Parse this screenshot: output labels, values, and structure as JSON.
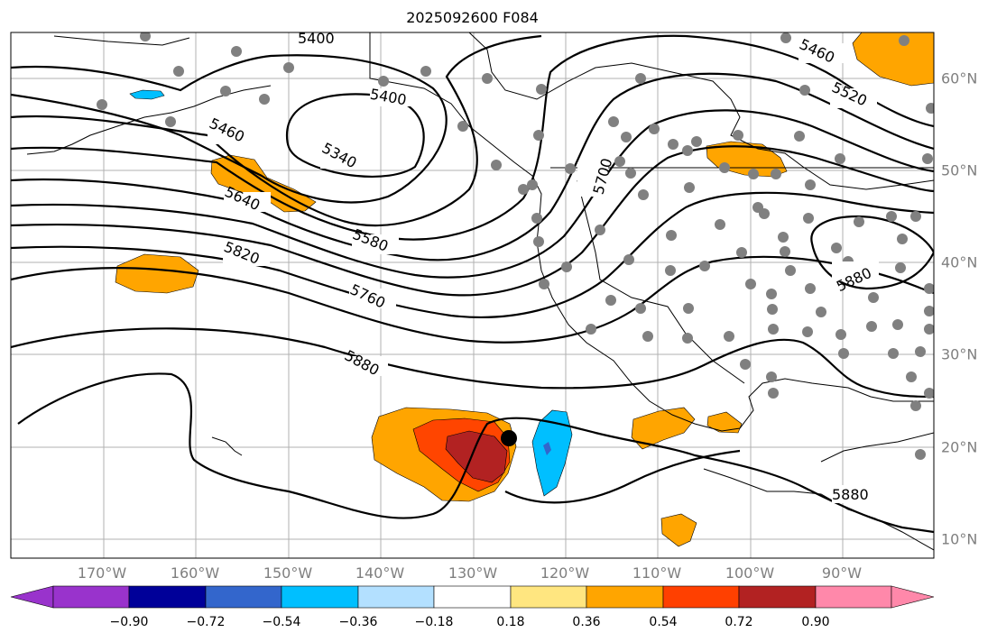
{
  "title": "2025092600 F084",
  "lon_labels": [
    "170°W",
    "160°W",
    "150°W",
    "140°W",
    "130°W",
    "120°W",
    "110°W",
    "100°W",
    "90°W"
  ],
  "lat_labels": [
    "60°N",
    "50°N",
    "40°N",
    "30°N",
    "20°N",
    "10°N"
  ],
  "contour_labels": [
    "5400",
    "5400",
    "5460",
    "5520",
    "5460",
    "5340",
    "5640",
    "5580",
    "5700",
    "5820",
    "5760",
    "5880",
    "5880",
    "5880"
  ],
  "colorbar": {
    "ticks": [
      "−0.90",
      "−0.72",
      "−0.54",
      "−0.36",
      "−0.18",
      "0.18",
      "0.36",
      "0.54",
      "0.72",
      "0.90"
    ],
    "colors": [
      "#9933cc",
      "#000099",
      "#3366cc",
      "#00bfff",
      "#b3e0ff",
      "#ffffff",
      "#ffe680",
      "#ffa500",
      "#ff4000",
      "#b22222",
      "#ff88aa"
    ]
  },
  "colors": {
    "light_orange": "#ffa500",
    "orange_red": "#ff4500",
    "dark_red": "#b22222",
    "cyan": "#00bfff",
    "station_dot": "#808080",
    "marker": "#000000"
  }
}
